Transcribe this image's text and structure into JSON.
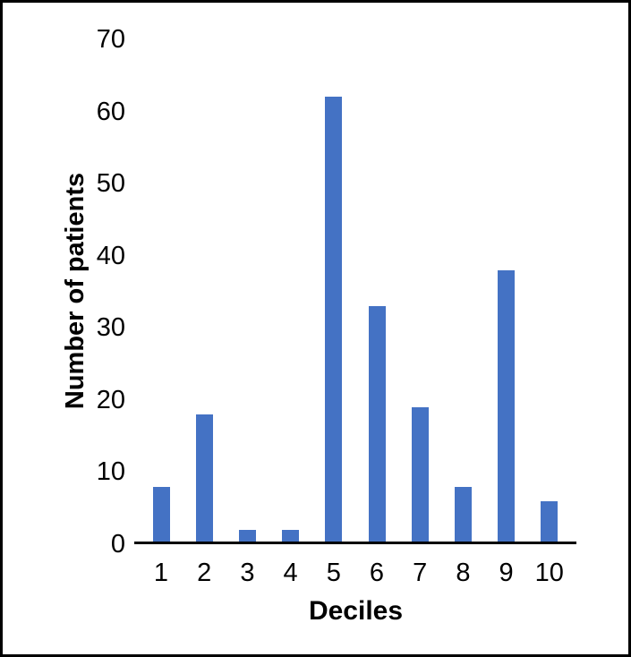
{
  "chart_data": {
    "type": "bar",
    "title": "",
    "xlabel": "Deciles",
    "ylabel": "Number of patients",
    "categories": [
      "1",
      "2",
      "3",
      "4",
      "5",
      "6",
      "7",
      "8",
      "9",
      "10"
    ],
    "values": [
      8,
      18,
      2,
      2,
      62,
      33,
      19,
      8,
      38,
      6
    ],
    "ylim": [
      0,
      70
    ],
    "yticks": [
      0,
      10,
      20,
      30,
      40,
      50,
      60,
      70
    ],
    "grid": false,
    "legend": "none",
    "bar_color": "#4472C4",
    "axis_color": "#000000",
    "text_color": "#000000",
    "background_color": "#FFFFFF",
    "frame_color": "#000000"
  }
}
